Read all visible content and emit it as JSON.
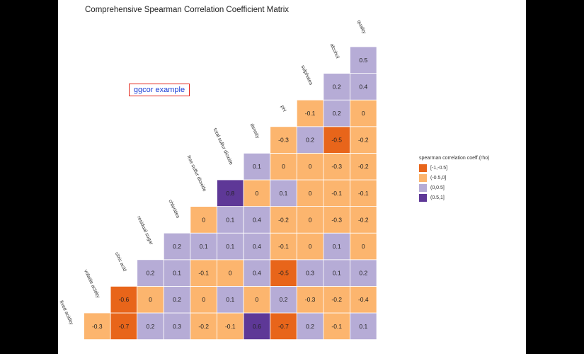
{
  "title": "Comprehensive Spearman Correlation Coefficient Matrix",
  "annotation": "ggcor example",
  "legend": {
    "title": "spearman correlation coeff.(rho)",
    "items": [
      {
        "label": "[-1,-0.5]",
        "color": "#e8651a"
      },
      {
        "label": "(-0.5,0]",
        "color": "#fcb56e"
      },
      {
        "label": "(0,0.5]",
        "color": "#b6acd6"
      },
      {
        "label": "(0.5,1]",
        "color": "#5e3897"
      }
    ]
  },
  "chart_data": {
    "type": "heatmap",
    "title": "Comprehensive Spearman Correlation Coefficient Matrix",
    "variables": [
      "fixed acidity",
      "volatile acidity",
      "citric acid",
      "residual sugar",
      "chlorides",
      "free sulfur dioxide",
      "total sulfur dioxide",
      "density",
      "pH",
      "sulphates",
      "alcohol",
      "quality"
    ],
    "values": [
      [
        null,
        -0.3,
        -0.7,
        0.2,
        0.3,
        -0.2,
        -0.1,
        0.6,
        -0.7,
        0.2,
        -0.1,
        0.1
      ],
      [
        null,
        null,
        -0.6,
        0,
        0.2,
        0,
        0.1,
        0,
        0.2,
        -0.3,
        -0.2,
        -0.4
      ],
      [
        null,
        null,
        null,
        0.2,
        0.1,
        -0.1,
        0,
        0.4,
        -0.5,
        0.3,
        0.1,
        0.2
      ],
      [
        null,
        null,
        null,
        null,
        0.2,
        0.1,
        0.1,
        0.4,
        -0.1,
        0,
        0.1,
        0
      ],
      [
        null,
        null,
        null,
        null,
        null,
        0,
        0.1,
        0.4,
        -0.2,
        0,
        -0.3,
        -0.2
      ],
      [
        null,
        null,
        null,
        null,
        null,
        null,
        0.8,
        0,
        0.1,
        0,
        -0.1,
        -0.1
      ],
      [
        null,
        null,
        null,
        null,
        null,
        null,
        null,
        0.1,
        0,
        0,
        -0.3,
        -0.2
      ],
      [
        null,
        null,
        null,
        null,
        null,
        null,
        null,
        null,
        -0.3,
        0.2,
        -0.5,
        -0.2
      ],
      [
        null,
        null,
        null,
        null,
        null,
        null,
        null,
        null,
        null,
        -0.1,
        0.2,
        0
      ],
      [
        null,
        null,
        null,
        null,
        null,
        null,
        null,
        null,
        null,
        null,
        0.2,
        0.4
      ],
      [
        null,
        null,
        null,
        null,
        null,
        null,
        null,
        null,
        null,
        null,
        null,
        0.5
      ]
    ],
    "value_colors": [
      {
        "min": -1,
        "max": -0.5,
        "color": "#e8651a"
      },
      {
        "min": -0.5,
        "max": 0,
        "color": "#fcb56e"
      },
      {
        "min": 0,
        "max": 0.5,
        "color": "#b6acd6"
      },
      {
        "min": 0.5,
        "max": 1,
        "color": "#5e3897"
      }
    ]
  }
}
